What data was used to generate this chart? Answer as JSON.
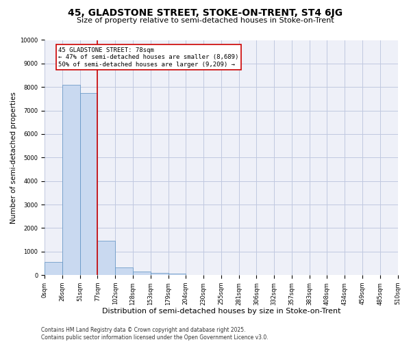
{
  "title": "45, GLADSTONE STREET, STOKE-ON-TRENT, ST4 6JG",
  "subtitle": "Size of property relative to semi-detached houses in Stoke-on-Trent",
  "xlabel": "Distribution of semi-detached houses by size in Stoke-on-Trent",
  "ylabel": "Number of semi-detached properties",
  "bin_labels": [
    "0sqm",
    "26sqm",
    "51sqm",
    "77sqm",
    "102sqm",
    "128sqm",
    "153sqm",
    "179sqm",
    "204sqm",
    "230sqm",
    "255sqm",
    "281sqm",
    "306sqm",
    "332sqm",
    "357sqm",
    "383sqm",
    "408sqm",
    "434sqm",
    "459sqm",
    "485sqm",
    "510sqm"
  ],
  "bar_values": [
    550,
    8100,
    7750,
    1450,
    330,
    150,
    100,
    60,
    0,
    0,
    0,
    0,
    0,
    0,
    0,
    0,
    0,
    0,
    0,
    0
  ],
  "bar_color": "#c9d9f0",
  "bar_edge_color": "#5a8fc0",
  "annotation_title": "45 GLADSTONE STREET: 78sqm",
  "annotation_line1": "← 47% of semi-detached houses are smaller (8,689)",
  "annotation_line2": "50% of semi-detached houses are larger (9,209) →",
  "vline_color": "#cc0000",
  "annotation_box_color": "#cc0000",
  "ylim": [
    0,
    10000
  ],
  "yticks": [
    0,
    1000,
    2000,
    3000,
    4000,
    5000,
    6000,
    7000,
    8000,
    9000,
    10000
  ],
  "grid_color": "#c0c8e0",
  "background_color": "#eef0f8",
  "footer": "Contains HM Land Registry data © Crown copyright and database right 2025.\nContains public sector information licensed under the Open Government Licence v3.0.",
  "title_fontsize": 10,
  "subtitle_fontsize": 8,
  "xlabel_fontsize": 8,
  "ylabel_fontsize": 7.5,
  "tick_fontsize": 6,
  "annotation_fontsize": 6.5,
  "footer_fontsize": 5.5
}
